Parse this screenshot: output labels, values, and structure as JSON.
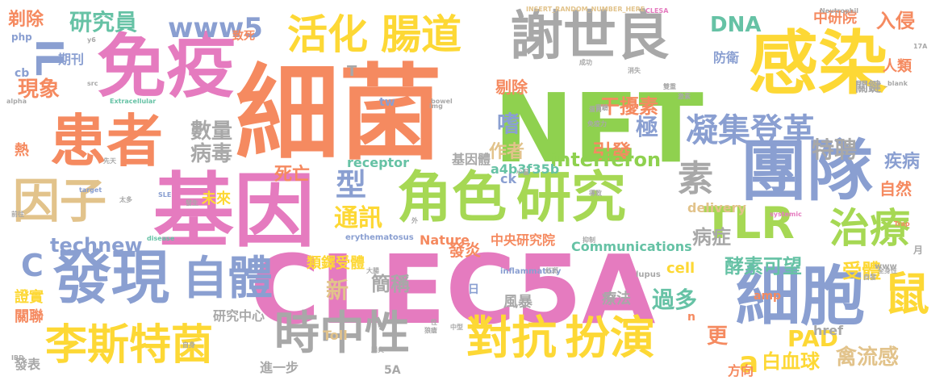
{
  "palette": {
    "orange": "#f58a60",
    "green": "#8fd14f",
    "blue": "#8a9fd1",
    "pink": "#e57bbf",
    "yellow": "#fdd835",
    "tan": "#e2c38b",
    "gray": "#a8a8a8",
    "teal": "#66c2a5",
    "lime": "#a6d854"
  },
  "words": [
    {
      "text": "細菌"
    },
    {
      "text": "CLEC5A"
    },
    {
      "text": "NET"
    },
    {
      "text": "基因"
    },
    {
      "text": "免疫"
    },
    {
      "text": "感染"
    },
    {
      "text": "謝世良"
    },
    {
      "text": "角色"
    },
    {
      "text": "研究"
    },
    {
      "text": "團隊"
    },
    {
      "text": "患者"
    },
    {
      "text": "發現"
    },
    {
      "text": "細胞"
    },
    {
      "text": "活化"
    },
    {
      "text": "腸道"
    },
    {
      "text": "因子"
    },
    {
      "text": "時中性"
    },
    {
      "text": "對抗"
    },
    {
      "text": "扮演"
    },
    {
      "text": "李斯特菌"
    },
    {
      "text": "自體"
    },
    {
      "text": "TLR"
    },
    {
      "text": "治療"
    },
    {
      "text": "鼠"
    },
    {
      "text": "凝集登革"
    },
    {
      "text": "IL"
    },
    {
      "text": "www5"
    },
    {
      "text": "研究員"
    },
    {
      "text": "剃除"
    },
    {
      "text": "期刊"
    },
    {
      "text": "現象"
    },
    {
      "text": "數量"
    },
    {
      "text": "病毒"
    },
    {
      "text": "型"
    },
    {
      "text": "素"
    },
    {
      "text": "DNA"
    },
    {
      "text": "中研院"
    },
    {
      "text": "入侵"
    },
    {
      "text": "防衛"
    },
    {
      "text": "人類"
    },
    {
      "text": "關鍵"
    },
    {
      "text": "干擾素"
    },
    {
      "text": "特聘"
    },
    {
      "text": "剔除"
    },
    {
      "text": "嗜"
    },
    {
      "text": "極"
    },
    {
      "text": "引發"
    },
    {
      "text": "疾病"
    },
    {
      "text": "interferon"
    },
    {
      "text": "基因體"
    },
    {
      "text": "a4b3f35b"
    },
    {
      "text": "死亡"
    },
    {
      "text": "作者"
    },
    {
      "text": "通訊"
    },
    {
      "text": "technew"
    },
    {
      "text": "C"
    },
    {
      "text": "PAD"
    },
    {
      "text": "酵素可望"
    },
    {
      "text": "受體"
    },
    {
      "text": "過多"
    },
    {
      "text": "新"
    },
    {
      "text": "簡稱"
    },
    {
      "text": "發炎"
    },
    {
      "text": "類鐸受體"
    },
    {
      "text": "Nature"
    },
    {
      "text": "中央研究院"
    },
    {
      "text": "Communications"
    },
    {
      "text": "病症"
    },
    {
      "text": "更"
    },
    {
      "text": "a"
    },
    {
      "text": "白血球"
    },
    {
      "text": "禽流感"
    },
    {
      "text": "證實"
    },
    {
      "text": "關聯"
    },
    {
      "text": "研究中心"
    },
    {
      "text": "Toll"
    },
    {
      "text": "風暴"
    },
    {
      "text": "療法"
    },
    {
      "text": "cell"
    },
    {
      "text": "發表"
    },
    {
      "text": "進一步"
    },
    {
      "text": "5A"
    },
    {
      "text": "方向"
    },
    {
      "text": "href"
    },
    {
      "text": "delivery"
    },
    {
      "text": "receptor"
    },
    {
      "text": "ck"
    },
    {
      "text": "自然"
    },
    {
      "text": "未來"
    },
    {
      "text": "致死"
    },
    {
      "text": "熱"
    },
    {
      "text": "php"
    },
    {
      "text": "cb"
    },
    {
      "text": "amp"
    },
    {
      "text": "日"
    },
    {
      "text": "T"
    },
    {
      "text": "tw"
    },
    {
      "text": "lupus"
    },
    {
      "text": "inflammatory"
    },
    {
      "text": "erythematosus"
    },
    {
      "text": "www"
    },
    {
      "text": "n"
    },
    {
      "text": "月"
    },
    {
      "text": "INSERT_RANDOM_NUMBER_HERE"
    },
    {
      "text": "Neutrophil"
    },
    {
      "text": "CLESA"
    },
    {
      "text": "Extracellular"
    },
    {
      "text": "alpha"
    },
    {
      "text": "systemic"
    },
    {
      "text": "_blank"
    },
    {
      "text": "target"
    },
    {
      "text": "SLE"
    },
    {
      "text": "disease"
    },
    {
      "text": "bowel"
    },
    {
      "text": "Trap"
    },
    {
      "text": "IBD"
    },
    {
      "text": "img"
    },
    {
      "text": "src"
    },
    {
      "text": "免疫力"
    },
    {
      "text": "蛋白"
    },
    {
      "text": "發生"
    },
    {
      "text": "自身"
    },
    {
      "text": "狼瘡"
    },
    {
      "text": "紅斑"
    },
    {
      "text": "性"
    },
    {
      "text": "大腸"
    },
    {
      "text": "腸炎"
    },
    {
      "text": "自發"
    },
    {
      "text": "全身性"
    },
    {
      "text": "先天"
    },
    {
      "text": "太多"
    },
    {
      "text": "前往"
    },
    {
      "text": "原"
    },
    {
      "text": "抑制"
    },
    {
      "text": "小鼠"
    },
    {
      "text": "實驗"
    },
    {
      "text": "消失"
    },
    {
      "text": "成功"
    },
    {
      "text": "導致"
    },
    {
      "text": "雙重"
    },
    {
      "text": "激素"
    },
    {
      "text": "外"
    },
    {
      "text": "中型"
    },
    {
      "text": "y6"
    },
    {
      "text": "17A"
    }
  ]
}
